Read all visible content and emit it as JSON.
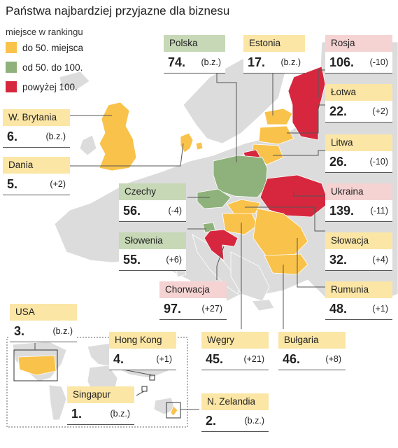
{
  "title": "Państwa najbardziej przyjazne dla biznesu",
  "legend": {
    "header": "miejsce w rankingu",
    "items": [
      {
        "label": "do 50. miejsca",
        "color": "#f9c24a"
      },
      {
        "label": "od 50. do 100.",
        "color": "#8fb27c"
      },
      {
        "label": "powyżej 100.",
        "color": "#d7273e"
      }
    ]
  },
  "colors": {
    "land": "#dcdcdc",
    "yellow": "#f9c24a",
    "green": "#8fb27c",
    "red": "#d7273e"
  },
  "countries": {
    "polska": {
      "name": "Polska",
      "rank": "74.",
      "change": "(b.z.)"
    },
    "estonia": {
      "name": "Estonia",
      "rank": "17.",
      "change": "(b.z.)"
    },
    "rosja": {
      "name": "Rosja",
      "rank": "106.",
      "change": "(-10)"
    },
    "lotwa": {
      "name": "Łotwa",
      "rank": "22.",
      "change": "(+2)"
    },
    "litwa": {
      "name": "Litwa",
      "rank": "26.",
      "change": "(-10)"
    },
    "ukraina": {
      "name": "Ukraina",
      "rank": "139.",
      "change": "(-11)"
    },
    "slowacja": {
      "name": "Słowacja",
      "rank": "32.",
      "change": "(+4)"
    },
    "rumunia": {
      "name": "Rumunia",
      "rank": "48.",
      "change": "(+1)"
    },
    "wbrytania": {
      "name": "W. Brytania",
      "rank": "6.",
      "change": "(b.z.)"
    },
    "dania": {
      "name": "Dania",
      "rank": "5.",
      "change": "(+2)"
    },
    "czechy": {
      "name": "Czechy",
      "rank": "56.",
      "change": "(-4)"
    },
    "slowenia": {
      "name": "Słowenia",
      "rank": "55.",
      "change": "(+6)"
    },
    "chorwacja": {
      "name": "Chorwacja",
      "rank": "97.",
      "change": "(+27)"
    },
    "wegry": {
      "name": "Węgry",
      "rank": "45.",
      "change": "(+21)"
    },
    "bulgaria": {
      "name": "Bułgaria",
      "rank": "46.",
      "change": "(+8)"
    },
    "usa": {
      "name": "USA",
      "rank": "3.",
      "change": "(b.z.)"
    },
    "hongkong": {
      "name": "Hong Kong",
      "rank": "4.",
      "change": "(+1)"
    },
    "singapur": {
      "name": "Singapur",
      "rank": "1.",
      "change": "(b.z.)"
    },
    "nzelandia": {
      "name": "N. Zelandia",
      "rank": "2.",
      "change": "(b.z.)"
    }
  }
}
